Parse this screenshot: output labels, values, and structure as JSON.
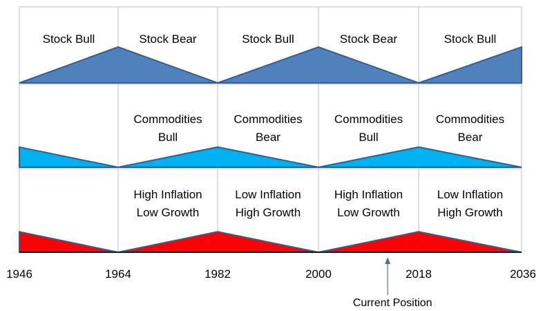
{
  "colors": {
    "stocks": "#4f81bd",
    "commodities": "#00b0f0",
    "inflation": "#ff0000",
    "outline": "#385d8a",
    "grid": "#bfbfbf",
    "axis": "#000000"
  },
  "years": [
    "1946",
    "1964",
    "1982",
    "2000",
    "2018",
    "2036"
  ],
  "rows": [
    {
      "key": "stocks",
      "labels": [
        "Stock Bull",
        "Stock Bear",
        "Stock Bull",
        "Stock Bear",
        "Stock Bull"
      ],
      "profile": [
        0,
        1,
        0,
        1,
        0,
        1
      ]
    },
    {
      "key": "commodities",
      "labels": [
        [
          "Commodities",
          "Bull"
        ],
        [
          "Commodities",
          "Bear"
        ],
        [
          "Commodities",
          "Bull"
        ],
        [
          "Commodities",
          "Bear"
        ]
      ],
      "label_start_segment": 1,
      "profile": [
        0.55,
        0,
        0.55,
        0,
        0.55,
        0
      ]
    },
    {
      "key": "inflation",
      "labels": [
        [
          "High Inflation",
          "Low Growth"
        ],
        [
          "Low Inflation",
          "High Growth"
        ],
        [
          "High Inflation",
          "Low Growth"
        ],
        [
          "Low Inflation",
          "High Growth"
        ]
      ],
      "label_start_segment": 1,
      "profile": [
        0.55,
        0,
        0.55,
        0,
        0.55,
        0
      ]
    }
  ],
  "marker": {
    "label": "Current Position",
    "year": 2012
  }
}
